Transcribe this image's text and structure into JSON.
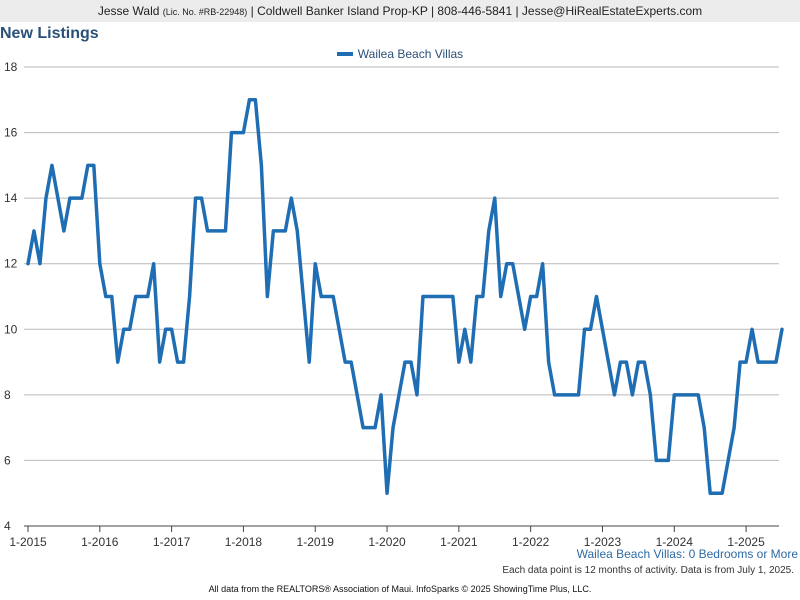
{
  "header": {
    "name": "Jesse Wald",
    "license": "(Lic. No. #RB-22948)",
    "rest": "| Coldwell Banker Island Prop-KP | 808-446-5841 | Jesse@HiRealEstateExperts.com"
  },
  "subtitle": "Wailea Beach Villas: 0 Bedrooms or More",
  "note": "Each data point is 12 months of activity. Data is from July 1, 2025.",
  "footer": "All data from the REALTORS® Association of Maui. InfoSparks © 2025 ShowingTime Plus, LLC.",
  "colors": {
    "series": "#1f6eb4",
    "grid": "#b9b9b9",
    "title": "#2a5079"
  },
  "chart_data": {
    "type": "line",
    "title": "New Listings",
    "legend_position": "top-center",
    "grid": true,
    "ylim": [
      4,
      18
    ],
    "y_ticks": [
      4,
      6,
      8,
      10,
      12,
      14,
      16,
      18
    ],
    "x_tick_labels": [
      "1-2015",
      "1-2016",
      "1-2017",
      "1-2018",
      "1-2019",
      "1-2020",
      "1-2021",
      "1-2022",
      "1-2023",
      "1-2024",
      "1-2025"
    ],
    "x_start": "2015-01",
    "series": [
      {
        "name": "Wailea Beach Villas",
        "color": "#1f6eb4",
        "values": [
          12,
          13,
          12,
          14,
          15,
          14,
          13,
          14,
          14,
          14,
          15,
          15,
          12,
          11,
          11,
          9,
          10,
          10,
          11,
          11,
          11,
          12,
          9,
          10,
          10,
          9,
          9,
          11,
          14,
          14,
          13,
          13,
          13,
          13,
          16,
          16,
          16,
          17,
          17,
          15,
          11,
          13,
          13,
          13,
          14,
          13,
          11,
          9,
          12,
          11,
          11,
          11,
          10,
          9,
          9,
          8,
          7,
          7,
          7,
          8,
          5,
          7,
          8,
          9,
          9,
          8,
          11,
          11,
          11,
          11,
          11,
          11,
          9,
          10,
          9,
          11,
          11,
          13,
          14,
          11,
          12,
          12,
          11,
          10,
          11,
          11,
          12,
          9,
          8,
          8,
          8,
          8,
          8,
          10,
          10,
          11,
          10,
          9,
          8,
          9,
          9,
          8,
          9,
          9,
          8,
          6,
          6,
          6,
          8,
          8,
          8,
          8,
          8,
          7,
          5,
          5,
          5,
          6,
          7,
          9,
          9,
          10,
          9,
          9,
          9,
          9,
          10
        ]
      }
    ]
  }
}
